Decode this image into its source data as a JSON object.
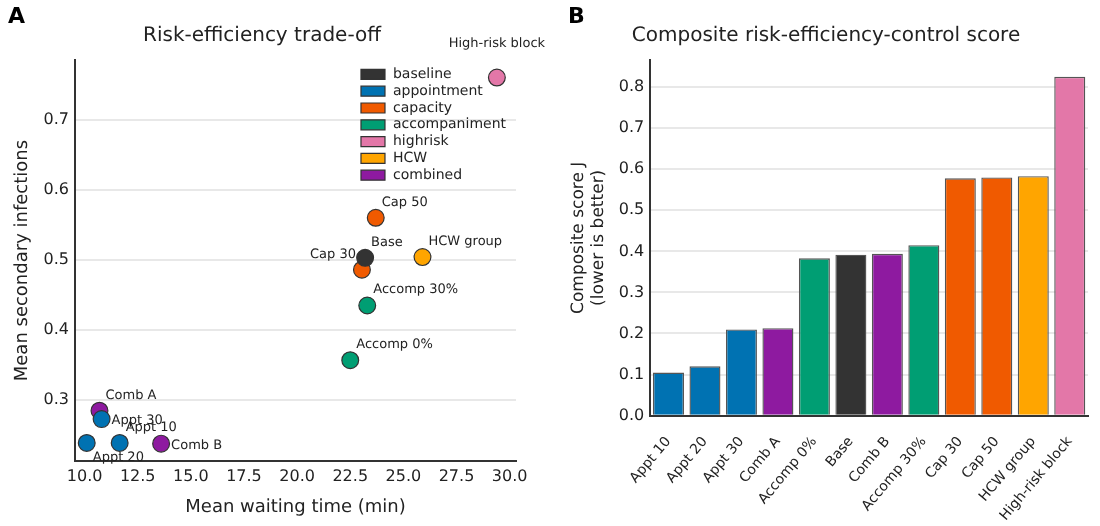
{
  "chart_data": [
    {
      "type": "scatter",
      "title": "Risk-efficiency trade-off",
      "xlabel": "Mean waiting time (min)",
      "ylabel": "Mean secondary infections",
      "xlim": [
        9.55,
        30.3
      ],
      "ylim": [
        0.213,
        0.785
      ],
      "xticks": [
        {
          "value": 10,
          "label": "10.0"
        },
        {
          "value": 12.5,
          "label": "12.5"
        },
        {
          "value": 15,
          "label": "15.0"
        },
        {
          "value": 17.5,
          "label": "17.5"
        },
        {
          "value": 20,
          "label": "20.0"
        },
        {
          "value": 22.5,
          "label": "22.5"
        },
        {
          "value": 25,
          "label": "25.0"
        },
        {
          "value": 27.5,
          "label": "27.5"
        },
        {
          "value": 30,
          "label": "30.0"
        }
      ],
      "yticks": [
        0.3,
        0.4,
        0.5,
        0.6,
        0.7
      ],
      "grid": "y",
      "legend": "top right",
      "marker": "circle",
      "series": [
        {
          "name": "baseline",
          "color": "#333333",
          "x": [
            23.2
          ],
          "values": [
            0.503
          ]
        },
        {
          "name": "appointment",
          "color": "#0072b2",
          "x": [
            10.8,
            10.1,
            11.65
          ],
          "values": [
            0.273,
            0.239,
            0.239
          ]
        },
        {
          "name": "capacity",
          "color": "#f05a00",
          "x": [
            23.7,
            23.05
          ],
          "values": [
            0.56,
            0.486
          ]
        },
        {
          "name": "accompaniment",
          "color": "#009e73",
          "x": [
            23.3,
            22.5
          ],
          "values": [
            0.435,
            0.357
          ]
        },
        {
          "name": "highrisk",
          "color": "#e377a8",
          "x": [
            29.4
          ],
          "values": [
            0.76
          ]
        },
        {
          "name": "HCW",
          "color": "#ffa500",
          "x": [
            25.9
          ],
          "values": [
            0.504
          ]
        },
        {
          "name": "combined",
          "color": "#8e1aa0",
          "x": [
            10.7,
            13.6
          ],
          "values": [
            0.285,
            0.238
          ]
        }
      ],
      "annotations": [
        "A",
        {
          "text": "High-risk block",
          "x": 29.4,
          "y": 0.76
        },
        {
          "text": "Cap 50",
          "x": 23.7,
          "y": 0.56
        },
        {
          "text": "Base",
          "x": 23.2,
          "y": 0.503
        },
        {
          "text": "Cap 30",
          "x": 23.05,
          "y": 0.486
        },
        {
          "text": "HCW group",
          "x": 25.9,
          "y": 0.504
        },
        {
          "text": "Accomp 30%",
          "x": 23.3,
          "y": 0.435
        },
        {
          "text": "Accomp 0%",
          "x": 22.5,
          "y": 0.357
        },
        {
          "text": "Comb A",
          "x": 10.7,
          "y": 0.285
        },
        {
          "text": "Appt 30",
          "x": 10.8,
          "y": 0.273
        },
        {
          "text": "Appt 20",
          "x": 10.1,
          "y": 0.239
        },
        {
          "text": "Appt 10",
          "x": 11.65,
          "y": 0.239
        },
        {
          "text": "Comb B",
          "x": 13.6,
          "y": 0.238
        }
      ]
    },
    {
      "type": "bar",
      "title": "Composite risk-efficiency-control score",
      "ylabel": "Composite score J\n(lower is better)",
      "categories": [
        "Appt 10",
        "Appt 20",
        "Appt 30",
        "Comb A",
        "Accomp 0%",
        "Base",
        "Comb B",
        "Accomp 30%",
        "Cap 30",
        "Cap 50",
        "HCW group",
        "High-risk block"
      ],
      "values": [
        0.105,
        0.12,
        0.21,
        0.213,
        0.383,
        0.392,
        0.394,
        0.415,
        0.578,
        0.58,
        0.583,
        0.825
      ],
      "colors": [
        "#0072b2",
        "#0072b2",
        "#0072b2",
        "#8e1aa0",
        "#009e73",
        "#333333",
        "#8e1aa0",
        "#009e73",
        "#f05a00",
        "#f05a00",
        "#ffa500",
        "#e377a8"
      ],
      "ylim": [
        0,
        0.866
      ],
      "yticks": [
        {
          "value": 0,
          "label": "0.0"
        },
        0.1,
        0.2,
        0.3,
        0.4,
        0.5,
        0.6,
        0.7,
        0.8
      ],
      "grid": "y",
      "annotations": [
        "B"
      ]
    }
  ]
}
